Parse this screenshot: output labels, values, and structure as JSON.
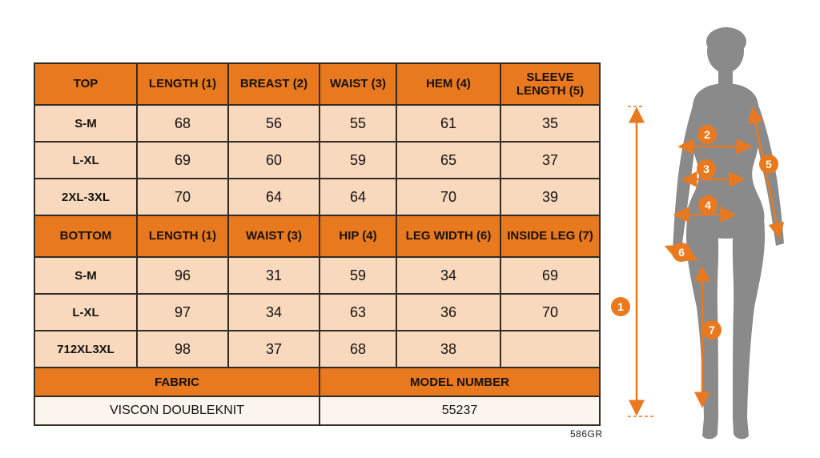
{
  "colors": {
    "accent": "#E8791F",
    "row_bg": "#F8D9BE",
    "value_bg": "#FCF5EE",
    "border": "#332C24",
    "figure_gray": "#8A8A8A",
    "marker_text": "#FFFFFF"
  },
  "table": {
    "sections": [
      {
        "header": [
          "TOP",
          "LENGTH (1)",
          "BREAST (2)",
          "WAIST (3)",
          "HEM (4)",
          "SLEEVE LENGTH (5)"
        ],
        "rows": [
          [
            "S-M",
            "68",
            "56",
            "55",
            "61",
            "35"
          ],
          [
            "L-XL",
            "69",
            "60",
            "59",
            "65",
            "37"
          ],
          [
            "2XL-3XL",
            "70",
            "64",
            "64",
            "70",
            "39"
          ]
        ]
      },
      {
        "header": [
          "BOTTOM",
          "LENGTH (1)",
          "WAIST (3)",
          "HIP (4)",
          "LEG WIDTH (6)",
          "INSIDE LEG (7)"
        ],
        "rows": [
          [
            "S-M",
            "96",
            "31",
            "59",
            "34",
            "69"
          ],
          [
            "L-XL",
            "97",
            "34",
            "63",
            "36",
            "70"
          ],
          [
            "712XL3XL",
            "98",
            "37",
            "68",
            "38",
            ""
          ]
        ]
      }
    ],
    "footer": {
      "labels": [
        "FABRIC",
        "MODEL NUMBER"
      ],
      "values": [
        "VISCON DOUBLEKNIT",
        "55237"
      ]
    }
  },
  "code": "586GR",
  "figure": {
    "markers": [
      "1",
      "2",
      "3",
      "4",
      "5",
      "6",
      "7"
    ]
  },
  "chart_data": [
    {
      "type": "table",
      "title": "TOP",
      "columns": [
        "TOP",
        "LENGTH (1)",
        "BREAST (2)",
        "WAIST (3)",
        "HEM (4)",
        "SLEEVE LENGTH (5)"
      ],
      "rows": [
        [
          "S-M",
          68,
          56,
          55,
          61,
          35
        ],
        [
          "L-XL",
          69,
          60,
          59,
          65,
          37
        ],
        [
          "2XL-3XL",
          70,
          64,
          64,
          70,
          39
        ]
      ]
    },
    {
      "type": "table",
      "title": "BOTTOM",
      "columns": [
        "BOTTOM",
        "LENGTH (1)",
        "WAIST (3)",
        "HIP (4)",
        "LEG WIDTH (6)",
        "INSIDE LEG (7)"
      ],
      "rows": [
        [
          "S-M",
          96,
          31,
          59,
          34,
          69
        ],
        [
          "L-XL",
          97,
          34,
          63,
          36,
          70
        ],
        [
          "712XL3XL",
          98,
          37,
          68,
          38,
          null
        ]
      ]
    }
  ]
}
